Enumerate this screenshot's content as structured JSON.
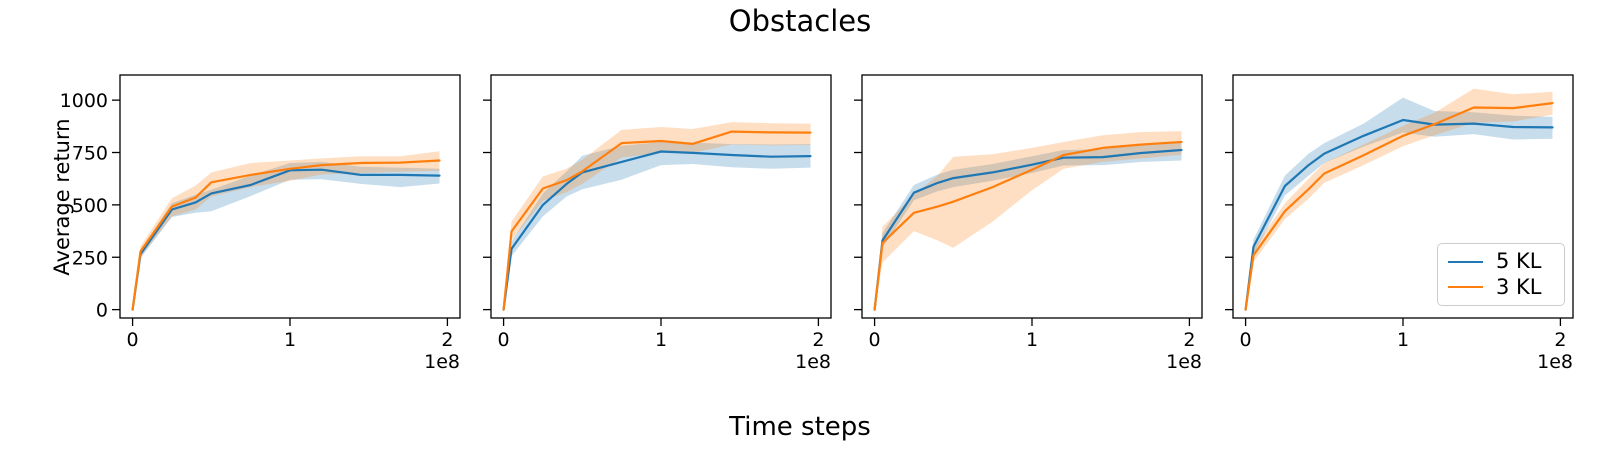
{
  "title": "Obstacles",
  "xlabel": "Time steps",
  "ylabel": "Average return",
  "colors": {
    "blue": "#1f77b4",
    "orange": "#ff7f0e",
    "band_alpha": 0.25,
    "text": "#000000",
    "spine": "#000000",
    "legend_border": "#cccccc"
  },
  "legend": {
    "position": "lower-right-of-last-panel",
    "items": [
      {
        "label": "5 KL",
        "color": "#1f77b4"
      },
      {
        "label": "3 KL",
        "color": "#ff7f0e"
      }
    ]
  },
  "axes": {
    "xlim_1e8": [
      -0.08,
      2.08
    ],
    "ylim": [
      -40,
      1120
    ],
    "yticks": [
      0,
      250,
      500,
      750,
      1000
    ],
    "xticks_1e8": [
      0,
      1,
      2
    ],
    "offset_text": "1e8",
    "grid": false
  },
  "chart_data": [
    {
      "type": "line",
      "panel": 1,
      "show_ytick_labels": true,
      "has_legend": false,
      "x_1e8": [
        0,
        0.05,
        0.25,
        0.4,
        0.5,
        0.75,
        1.0,
        1.2,
        1.45,
        1.7,
        1.95
      ],
      "series": [
        {
          "name": "5 KL",
          "color": "#1f77b4",
          "values": [
            0,
            265,
            478,
            512,
            555,
            595,
            665,
            668,
            643,
            643,
            640
          ],
          "band_lower": [
            0,
            245,
            442,
            462,
            470,
            542,
            620,
            622,
            600,
            585,
            602
          ],
          "band_upper": [
            0,
            285,
            508,
            548,
            572,
            640,
            700,
            705,
            682,
            678,
            672
          ]
        },
        {
          "name": "3 KL",
          "color": "#ff7f0e",
          "values": [
            0,
            278,
            492,
            535,
            608,
            643,
            672,
            690,
            700,
            702,
            712
          ],
          "band_lower": [
            0,
            252,
            445,
            478,
            540,
            585,
            615,
            645,
            652,
            658,
            662
          ],
          "band_upper": [
            0,
            302,
            532,
            592,
            655,
            700,
            712,
            722,
            732,
            732,
            756
          ]
        }
      ]
    },
    {
      "type": "line",
      "panel": 2,
      "show_ytick_labels": false,
      "has_legend": false,
      "x_1e8": [
        0,
        0.05,
        0.25,
        0.4,
        0.5,
        0.75,
        1.0,
        1.2,
        1.45,
        1.7,
        1.95
      ],
      "series": [
        {
          "name": "5 KL",
          "color": "#1f77b4",
          "values": [
            0,
            290,
            500,
            600,
            655,
            705,
            755,
            748,
            738,
            730,
            733
          ],
          "band_lower": [
            0,
            255,
            445,
            540,
            575,
            620,
            690,
            695,
            680,
            672,
            678
          ],
          "band_upper": [
            0,
            325,
            555,
            660,
            735,
            782,
            800,
            798,
            790,
            788,
            790
          ]
        },
        {
          "name": "3 KL",
          "color": "#ff7f0e",
          "values": [
            0,
            373,
            578,
            618,
            660,
            795,
            805,
            791,
            850,
            846,
            845
          ],
          "band_lower": [
            0,
            330,
            520,
            560,
            600,
            726,
            748,
            748,
            788,
            784,
            786
          ],
          "band_upper": [
            0,
            420,
            636,
            672,
            715,
            858,
            872,
            862,
            895,
            890,
            888
          ]
        }
      ]
    },
    {
      "type": "line",
      "panel": 3,
      "show_ytick_labels": false,
      "has_legend": false,
      "x_1e8": [
        0,
        0.05,
        0.25,
        0.4,
        0.5,
        0.75,
        1.0,
        1.2,
        1.45,
        1.7,
        1.95
      ],
      "series": [
        {
          "name": "5 KL",
          "color": "#1f77b4",
          "values": [
            0,
            330,
            558,
            605,
            628,
            655,
            692,
            725,
            728,
            748,
            762
          ],
          "band_lower": [
            0,
            295,
            522,
            565,
            585,
            615,
            652,
            688,
            690,
            705,
            712
          ],
          "band_upper": [
            0,
            365,
            595,
            645,
            668,
            695,
            732,
            762,
            766,
            790,
            805
          ]
        },
        {
          "name": "3 KL",
          "color": "#ff7f0e",
          "values": [
            0,
            318,
            462,
            492,
            515,
            585,
            668,
            738,
            772,
            788,
            800
          ],
          "band_lower": [
            0,
            225,
            375,
            330,
            295,
            420,
            570,
            672,
            705,
            722,
            740
          ],
          "band_upper": [
            0,
            395,
            548,
            640,
            730,
            742,
            772,
            800,
            832,
            848,
            852
          ]
        }
      ]
    },
    {
      "type": "line",
      "panel": 4,
      "show_ytick_labels": false,
      "has_legend": true,
      "x_1e8": [
        0,
        0.05,
        0.25,
        0.4,
        0.5,
        0.75,
        1.0,
        1.2,
        1.45,
        1.7,
        1.95
      ],
      "series": [
        {
          "name": "5 KL",
          "color": "#1f77b4",
          "values": [
            0,
            300,
            590,
            690,
            745,
            830,
            905,
            883,
            888,
            872,
            870
          ],
          "band_lower": [
            0,
            265,
            545,
            640,
            700,
            778,
            845,
            825,
            838,
            812,
            816
          ],
          "band_upper": [
            0,
            335,
            640,
            745,
            795,
            888,
            1012,
            948,
            942,
            926,
            920
          ]
        },
        {
          "name": "3 KL",
          "color": "#ff7f0e",
          "values": [
            0,
            260,
            470,
            575,
            650,
            737,
            830,
            885,
            965,
            962,
            986
          ],
          "band_lower": [
            0,
            228,
            432,
            530,
            605,
            690,
            780,
            832,
            892,
            898,
            930
          ],
          "band_upper": [
            0,
            292,
            508,
            625,
            700,
            788,
            878,
            940,
            1055,
            1028,
            1040
          ]
        }
      ]
    }
  ]
}
